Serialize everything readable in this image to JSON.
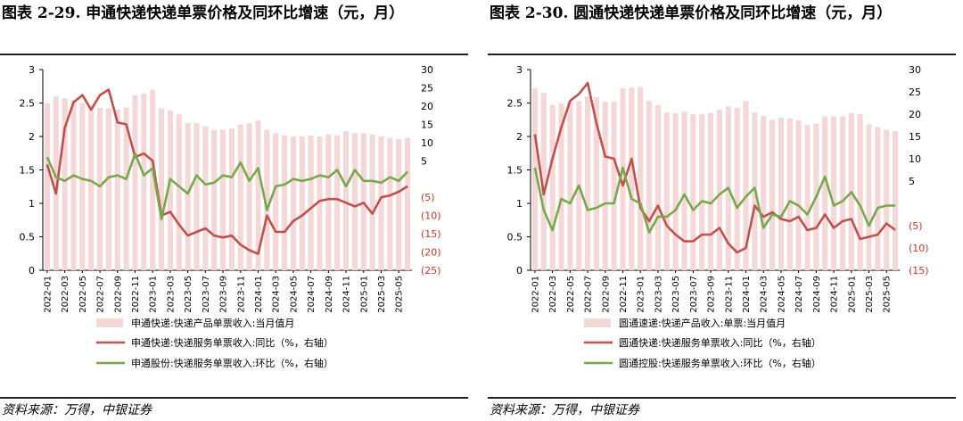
{
  "panels": [
    {
      "title": "图表 2-29. 申通快递快递单票价格及同环比增速（元，月）",
      "source": "资料来源：万得，中银证券",
      "chart_data": {
        "type": "bar+line",
        "x": [
          "2022-01",
          "2022-02",
          "2022-03",
          "2022-04",
          "2022-05",
          "2022-06",
          "2022-07",
          "2022-08",
          "2022-09",
          "2022-10",
          "2022-11",
          "2022-12",
          "2023-01",
          "2023-02",
          "2023-03",
          "2023-04",
          "2023-05",
          "2023-06",
          "2023-07",
          "2023-08",
          "2023-09",
          "2023-10",
          "2023-11",
          "2023-12",
          "2024-01",
          "2024-02",
          "2024-03",
          "2024-04",
          "2024-05",
          "2024-06",
          "2024-07",
          "2024-08",
          "2024-09",
          "2024-10",
          "2024-11",
          "2024-12",
          "2025-01",
          "2025-02",
          "2025-03",
          "2025-04",
          "2025-05",
          "2025-06"
        ],
        "x_tick_labels": [
          "2022-01",
          "2022-03",
          "2022-05",
          "2022-07",
          "2022-09",
          "2022-11",
          "2023-01",
          "2023-03",
          "2023-05",
          "2023-07",
          "2023-09",
          "2023-11",
          "2024-01",
          "2024-03",
          "2024-05",
          "2024-07",
          "2024-09",
          "2024-11",
          "2025-01",
          "2025-03",
          "2025-05"
        ],
        "y_left": {
          "lim": [
            0,
            3
          ],
          "ticks": [
            "0",
            "0.5",
            "1",
            "1.5",
            "2",
            "2.5",
            "3"
          ]
        },
        "y_right": {
          "lim": [
            -25,
            30
          ],
          "ticks": [
            "30",
            "25",
            "20",
            "15",
            "10",
            "5",
            "",
            "(5)",
            "(10)",
            "(15)",
            "(20)",
            "(25)"
          ]
        },
        "series": [
          {
            "name": "申通快递:快递产品单票收入:当月值月",
            "type": "bar",
            "axis": "left",
            "color": "#f4d7d7",
            "values": [
              2.5,
              2.6,
              2.57,
              2.55,
              2.5,
              2.46,
              2.43,
              2.42,
              2.4,
              2.43,
              2.62,
              2.64,
              2.7,
              2.42,
              2.39,
              2.33,
              2.2,
              2.2,
              2.15,
              2.1,
              2.1,
              2.12,
              2.18,
              2.2,
              2.24,
              2.1,
              2.05,
              2.02,
              2.0,
              2.0,
              2.01,
              2.0,
              2.03,
              2.02,
              2.08,
              2.05,
              2.05,
              2.03,
              2.0,
              1.98,
              1.96,
              1.98
            ]
          },
          {
            "name": "申通快递:快递服务单票收入:同比（%，右轴）",
            "type": "line",
            "axis": "right",
            "color": "#c0504d",
            "values": [
              4,
              -4,
              14,
              21,
              23,
              19,
              23,
              24.5,
              15.5,
              15,
              6,
              7,
              5,
              -10,
              -9,
              -12.5,
              -15.5,
              -14.5,
              -13.5,
              -15.5,
              -16,
              -15.5,
              -18,
              -19.5,
              -20.5,
              -10,
              -14.5,
              -14.5,
              -11.5,
              -10,
              -8,
              -6,
              -5.5,
              -5.5,
              -6.5,
              -7.5,
              -6.5,
              -9.5,
              -5,
              -4.5,
              -3.5,
              -2
            ]
          },
          {
            "name": "申通股份:快递服务单票收入:环比（%，右轴）",
            "type": "line",
            "axis": "right",
            "color": "#77a84b",
            "values": [
              6,
              0.5,
              -0.5,
              1,
              0,
              -0.5,
              -2,
              0.5,
              1,
              0,
              7,
              1,
              3,
              -11,
              0,
              -2,
              -4,
              1,
              -1.5,
              -1,
              1,
              0.5,
              4.5,
              -0.5,
              3,
              -8.5,
              -2,
              -1.5,
              0,
              -0.5,
              0,
              1,
              0.5,
              2.5,
              -2,
              2.5,
              -0.5,
              -0.5,
              -1,
              0.5,
              -0.5,
              2
            ]
          }
        ]
      }
    },
    {
      "title": "图表 2-30. 圆通快递快递单票价格及同环比增速（元，月）",
      "source": "资料来源：万得，中银证券",
      "chart_data": {
        "type": "bar+line",
        "x": [
          "2022-01",
          "2022-02",
          "2022-03",
          "2022-04",
          "2022-05",
          "2022-06",
          "2022-07",
          "2022-08",
          "2022-09",
          "2022-10",
          "2022-11",
          "2022-12",
          "2023-01",
          "2023-02",
          "2023-03",
          "2023-04",
          "2023-05",
          "2023-06",
          "2023-07",
          "2023-08",
          "2023-09",
          "2023-10",
          "2023-11",
          "2023-12",
          "2024-01",
          "2024-02",
          "2024-03",
          "2024-04",
          "2024-05",
          "2024-06",
          "2024-07",
          "2024-08",
          "2024-09",
          "2024-10",
          "2024-11",
          "2024-12",
          "2025-01",
          "2025-02",
          "2025-03",
          "2025-04",
          "2025-05",
          "2025-06"
        ],
        "x_tick_labels": [
          "2022-01",
          "2022-03",
          "2022-05",
          "2022-07",
          "2022-09",
          "2022-11",
          "2023-01",
          "2023-03",
          "2023-05",
          "2023-07",
          "2023-09",
          "2023-11",
          "2024-01",
          "2024-03",
          "2024-05",
          "2024-07",
          "2024-09",
          "2024-11",
          "2025-01",
          "2025-03",
          "2025-05"
        ],
        "y_left": {
          "lim": [
            0,
            3
          ],
          "ticks": [
            "0",
            "0.5",
            "1",
            "1.5",
            "2",
            "2.5",
            "3"
          ]
        },
        "y_right": {
          "lim": [
            -15,
            30
          ],
          "ticks": [
            "30",
            "25",
            "20",
            "15",
            "10",
            "5",
            "",
            "(5)",
            "(10)",
            "(15)"
          ]
        },
        "series": [
          {
            "name": "圆通速递:快递产品收入:单票:当月值月",
            "type": "bar",
            "axis": "left",
            "color": "#f4d7d7",
            "values": [
              2.72,
              2.65,
              2.47,
              2.5,
              2.52,
              2.53,
              2.6,
              2.59,
              2.52,
              2.52,
              2.72,
              2.73,
              2.74,
              2.53,
              2.47,
              2.36,
              2.35,
              2.37,
              2.33,
              2.33,
              2.35,
              2.4,
              2.45,
              2.43,
              2.53,
              2.36,
              2.31,
              2.25,
              2.28,
              2.27,
              2.24,
              2.17,
              2.19,
              2.3,
              2.3,
              2.3,
              2.35,
              2.33,
              2.18,
              2.14,
              2.1,
              2.08
            ]
          },
          {
            "name": "圆通快递:快递服务单票收入:同比（%，右轴）",
            "type": "line",
            "axis": "right",
            "color": "#c0504d",
            "values": [
              15.5,
              2,
              10,
              17,
              23,
              24.5,
              27,
              18,
              10.5,
              10,
              4,
              10,
              -1,
              -4,
              -0.5,
              -5,
              -7,
              -8.5,
              -8.5,
              -7,
              -7,
              -5.5,
              -9,
              -11,
              -10,
              -0.5,
              -3,
              -2,
              -3.5,
              -4,
              -3,
              -6,
              -5.5,
              -2.5,
              -5.5,
              -4,
              -3.5,
              -8,
              -7.5,
              -7,
              -4.5,
              -6
            ]
          },
          {
            "name": "圆通控股:快递服务单票收入:环比（%，右轴）",
            "type": "line",
            "axis": "right",
            "color": "#77a84b",
            "values": [
              8,
              -1.5,
              -6,
              1,
              0,
              4,
              -1.5,
              -1,
              0,
              0,
              8,
              1,
              0,
              -6.5,
              -3,
              -3,
              -1.5,
              2,
              -1.5,
              0.5,
              0,
              2,
              3.5,
              -1,
              1.5,
              3.5,
              -5.5,
              -2.5,
              -3,
              0.5,
              -0.5,
              -2.5,
              1.5,
              6,
              -0.5,
              0.5,
              2.5,
              -0.5,
              -5,
              -1,
              -0.5,
              -0.5
            ]
          }
        ]
      }
    }
  ]
}
